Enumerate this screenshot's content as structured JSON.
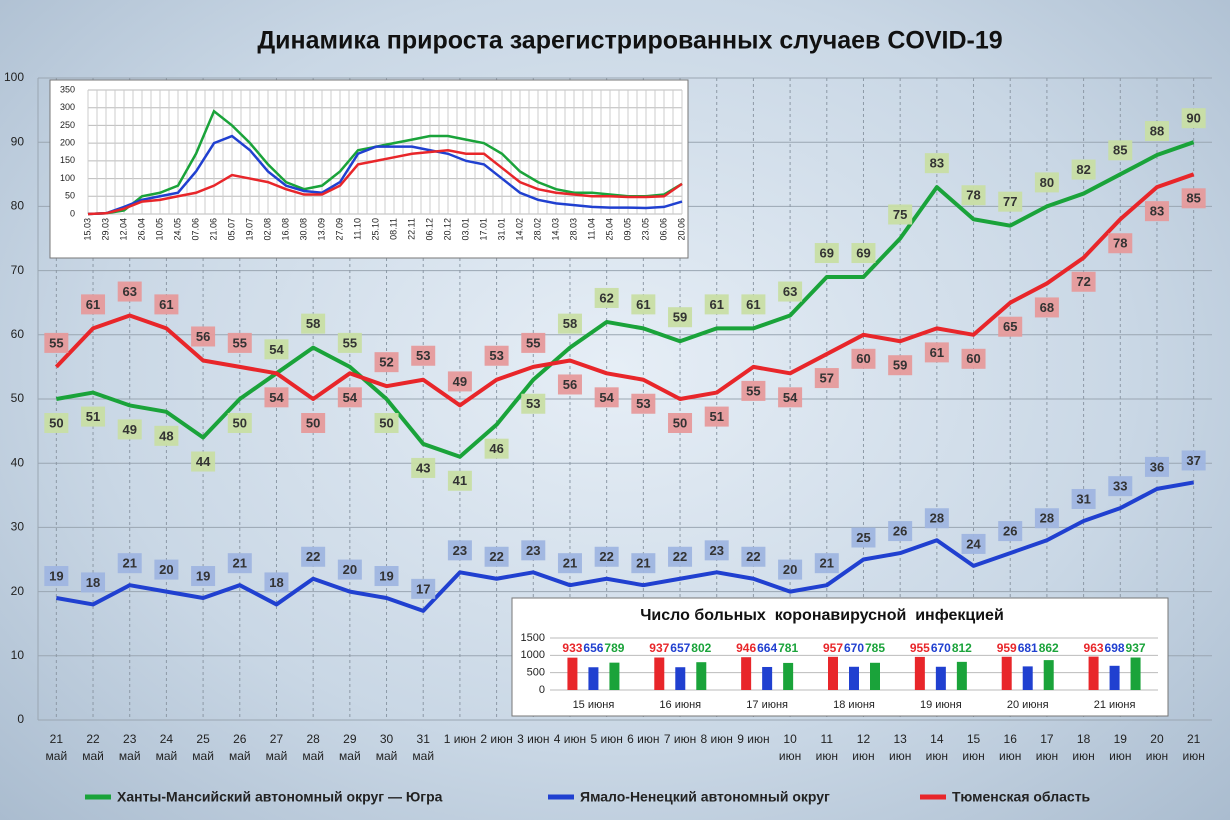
{
  "chart_data": [
    {
      "type": "line",
      "title": "Динамика прироста зарегистрированных случаев COVID-19",
      "categories": [
        "21 май",
        "22 май",
        "23 май",
        "24 май",
        "25 май",
        "26 май",
        "27 май",
        "28 май",
        "29 май",
        "30 май",
        "31 май",
        "1 июн",
        "2 июн",
        "3 июн",
        "4 июн",
        "5 июн",
        "6 июн",
        "7 июн",
        "8 июн",
        "9 июн",
        "10 июн",
        "11 июн",
        "12 июн",
        "13 июн",
        "14 июн",
        "15 июн",
        "16 июн",
        "17 июн",
        "18 июн",
        "19 июн",
        "20 июн",
        "21 июн"
      ],
      "series": [
        {
          "name": "Ханты-Мансийский автономный округ — Югра",
          "color": "#1aa33a",
          "label_color": "#c8dea4",
          "values": [
            50,
            51,
            49,
            48,
            44,
            50,
            54,
            58,
            55,
            50,
            43,
            41,
            46,
            53,
            58,
            62,
            61,
            59,
            61,
            61,
            63,
            69,
            69,
            75,
            83,
            78,
            77,
            80,
            82,
            85,
            88,
            90
          ]
        },
        {
          "name": "Ямало-Ненецкий автономный округ",
          "color": "#2040d0",
          "label_color": "#9fb5e0",
          "values": [
            19,
            18,
            21,
            20,
            19,
            21,
            18,
            22,
            20,
            19,
            17,
            23,
            22,
            23,
            21,
            22,
            21,
            22,
            23,
            22,
            20,
            21,
            25,
            26,
            28,
            24,
            26,
            28,
            31,
            33,
            36,
            37
          ]
        },
        {
          "name": "Тюменская область",
          "color": "#e8262a",
          "label_color": "#e69a9b",
          "values": [
            55,
            61,
            63,
            61,
            56,
            55,
            54,
            50,
            54,
            52,
            53,
            49,
            53,
            55,
            56,
            54,
            53,
            50,
            51,
            55,
            54,
            57,
            60,
            59,
            61,
            60,
            65,
            68,
            72,
            78,
            83,
            85
          ]
        }
      ],
      "ylim": [
        0,
        100
      ],
      "yticks": [
        0,
        10,
        20,
        30,
        40,
        50,
        60,
        70,
        80,
        90,
        100
      ],
      "grid": true,
      "legend": "bottom"
    },
    {
      "type": "line",
      "categories": [
        "15.03",
        "29.03",
        "12.04",
        "26.04",
        "10.05",
        "24.05",
        "07.06",
        "21.06",
        "05.07",
        "19.07",
        "02.08",
        "16.08",
        "30.08",
        "13.09",
        "27.09",
        "11.10",
        "25.10",
        "08.11",
        "22.11",
        "06.12",
        "20.12",
        "03.01",
        "17.01",
        "31.01",
        "14.02",
        "28.02",
        "14.03",
        "28.03",
        "11.04",
        "25.04",
        "09.05",
        "23.05",
        "06.06",
        "20.06"
      ],
      "series": [
        {
          "color": "#1aa33a",
          "values": [
            0,
            2,
            10,
            50,
            60,
            80,
            170,
            290,
            250,
            200,
            140,
            90,
            70,
            80,
            120,
            180,
            190,
            200,
            210,
            220,
            220,
            210,
            200,
            170,
            120,
            90,
            70,
            60,
            60,
            55,
            50,
            50,
            55,
            85
          ]
        },
        {
          "color": "#2040d0",
          "values": [
            0,
            2,
            20,
            40,
            50,
            60,
            120,
            200,
            220,
            180,
            120,
            80,
            65,
            60,
            90,
            170,
            190,
            190,
            190,
            180,
            170,
            150,
            140,
            100,
            60,
            40,
            30,
            25,
            20,
            18,
            18,
            17,
            20,
            35
          ]
        },
        {
          "color": "#e8262a",
          "values": [
            0,
            2,
            15,
            35,
            40,
            50,
            60,
            80,
            110,
            100,
            90,
            70,
            55,
            55,
            80,
            140,
            150,
            160,
            170,
            175,
            180,
            170,
            170,
            130,
            90,
            70,
            60,
            55,
            50,
            50,
            48,
            48,
            50,
            85
          ]
        }
      ],
      "ylim": [
        0,
        350
      ],
      "yticks": [
        0,
        50,
        100,
        150,
        200,
        250,
        300,
        350
      ],
      "grid": true
    },
    {
      "type": "bar",
      "title": "Число больных  коронавирусной  инфекцией",
      "categories": [
        "15 июня",
        "16 июня",
        "17 июня",
        "18 июня",
        "19 июня",
        "20 июня",
        "21 июня"
      ],
      "series": [
        {
          "color": "#e8262a",
          "values": [
            933,
            937,
            946,
            957,
            955,
            959,
            963
          ]
        },
        {
          "color": "#2040d0",
          "values": [
            656,
            657,
            664,
            670,
            670,
            681,
            698
          ]
        },
        {
          "color": "#1aa33a",
          "values": [
            789,
            802,
            781,
            785,
            812,
            862,
            937
          ]
        }
      ],
      "ylim": [
        0,
        1500
      ],
      "yticks": [
        0,
        500,
        1000,
        1500
      ],
      "grid": true
    }
  ]
}
